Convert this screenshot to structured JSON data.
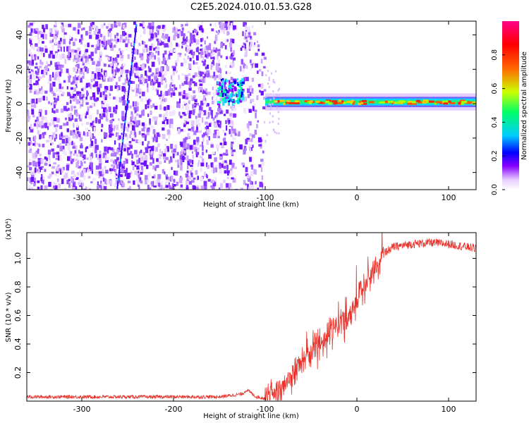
{
  "figure_title": "C2E5.2024.010.01.53.G28",
  "chart_data": [
    {
      "type": "heatmap",
      "xlabel": "Height of straight line (km)",
      "ylabel": "Frequency (Hz)",
      "xlim": [
        -360,
        130
      ],
      "ylim": [
        -50,
        48
      ],
      "xticks": [
        -300,
        -200,
        -100,
        0,
        100
      ],
      "yticks": [
        -40,
        -20,
        0,
        20,
        40
      ],
      "colorbar": {
        "label": "Normalized spectral amplitude",
        "range": [
          0.0,
          1.0
        ],
        "ticks": [
          0.0,
          0.2,
          0.4,
          0.6,
          0.8
        ],
        "colormap": [
          "#ffffff",
          "#e6ccff",
          "#8800ff",
          "#0000ff",
          "#00ccff",
          "#00ff66",
          "#ccff00",
          "#ff6600",
          "#ff0000",
          "#ff0088"
        ]
      },
      "regions": [
        {
          "x_range": [
            -360,
            -100
          ],
          "freq_range": [
            -50,
            48
          ],
          "amplitude": "0.1-0.3 (broadband noise)"
        },
        {
          "x_range": [
            -150,
            -125
          ],
          "freq_center": 8,
          "amplitude": "0.3-0.5"
        },
        {
          "x_range": [
            -100,
            130
          ],
          "freq_center": 1,
          "freq_halfwidth": 4,
          "amplitude": "0.5-0.9 (narrowband signal)"
        }
      ]
    },
    {
      "type": "line",
      "xlabel": "Height of straight line (km)",
      "ylabel": "SNR (10 * v/v)",
      "y_multiplier": "(x10⁴)",
      "xlim": [
        -360,
        130
      ],
      "ylim": [
        0.0,
        1.18
      ],
      "xticks": [
        -300,
        -200,
        -100,
        0,
        100
      ],
      "yticks": [
        0.2,
        0.4,
        0.6,
        0.8,
        1.0
      ],
      "yticklabels": [
        "0.2",
        "0.4",
        "0.6",
        "0.8",
        "1.0"
      ],
      "series": [
        {
          "color": "#e8322b",
          "x": [
            -360,
            -300,
            -250,
            -200,
            -150,
            -125,
            -120,
            -110,
            -100,
            -90,
            -80,
            -70,
            -60,
            -50,
            -40,
            -30,
            -20,
            -10,
            0,
            10,
            20,
            30,
            40,
            60,
            80,
            100,
            120,
            130
          ],
          "y": [
            0.03,
            0.03,
            0.03,
            0.03,
            0.03,
            0.05,
            0.08,
            0.03,
            0.02,
            0.03,
            0.1,
            0.2,
            0.28,
            0.36,
            0.42,
            0.48,
            0.55,
            0.6,
            0.72,
            0.82,
            0.95,
            1.04,
            1.08,
            1.1,
            1.11,
            1.1,
            1.08,
            1.07
          ]
        }
      ]
    }
  ]
}
